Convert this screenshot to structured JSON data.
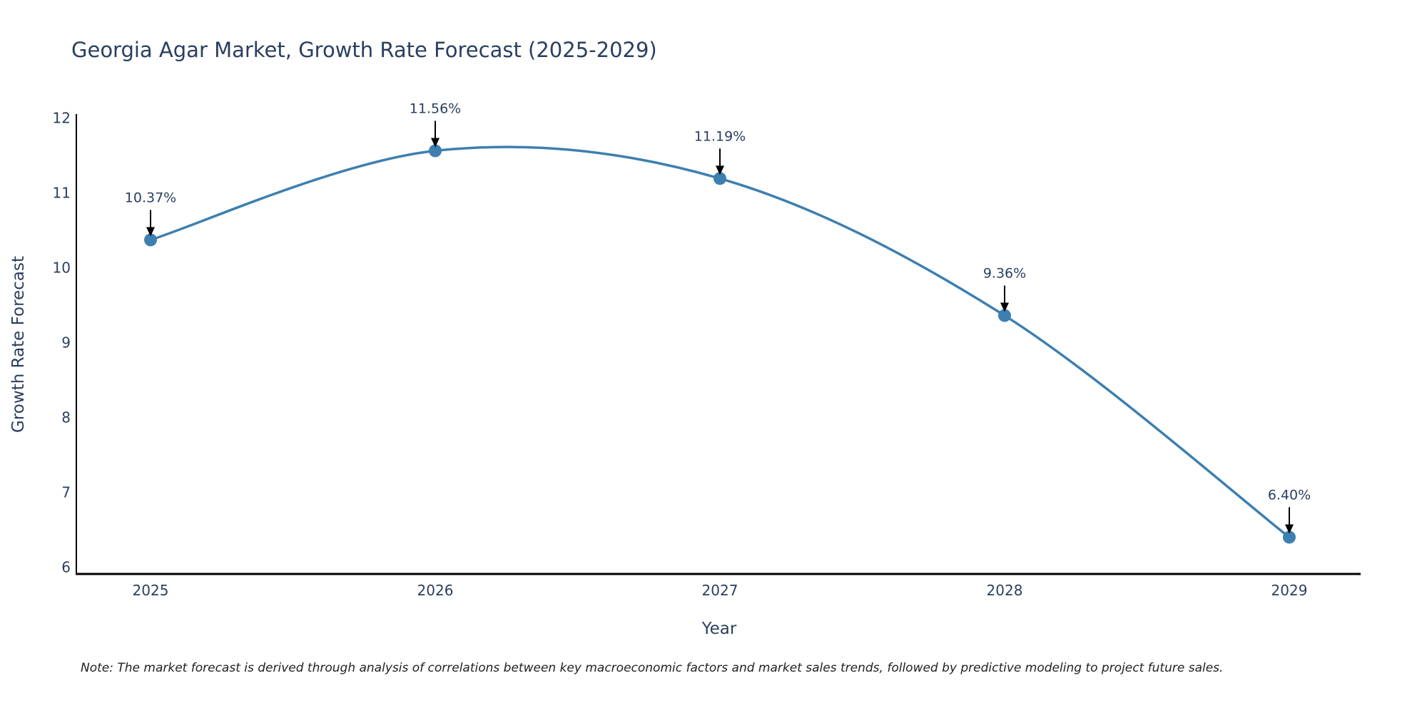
{
  "chart_data": {
    "type": "line",
    "title": "Georgia Agar Market, Growth Rate Forecast (2025-2029)",
    "xlabel": "Year",
    "ylabel": "Growth Rate Forecast",
    "categories": [
      "2025",
      "2026",
      "2027",
      "2028",
      "2029"
    ],
    "series": [
      {
        "name": "Growth Rate Forecast",
        "values": [
          10.37,
          11.56,
          11.19,
          9.36,
          6.4
        ],
        "labels": [
          "10.37%",
          "11.56%",
          "11.19%",
          "9.36%",
          "6.40%"
        ]
      }
    ],
    "y_ticks": [
      6,
      7,
      8,
      9,
      10,
      11,
      12
    ],
    "ylim": [
      5.9,
      12.05
    ],
    "line_shape": "smooth",
    "grid": false,
    "line_color": "#3d7fb0",
    "marker_color": "#3d7fb0",
    "annotation_color": "#000000",
    "note": "Note: The market forecast is derived through analysis of correlations between key macroeconomic factors and market sales trends, followed by predictive modeling to project future sales."
  }
}
